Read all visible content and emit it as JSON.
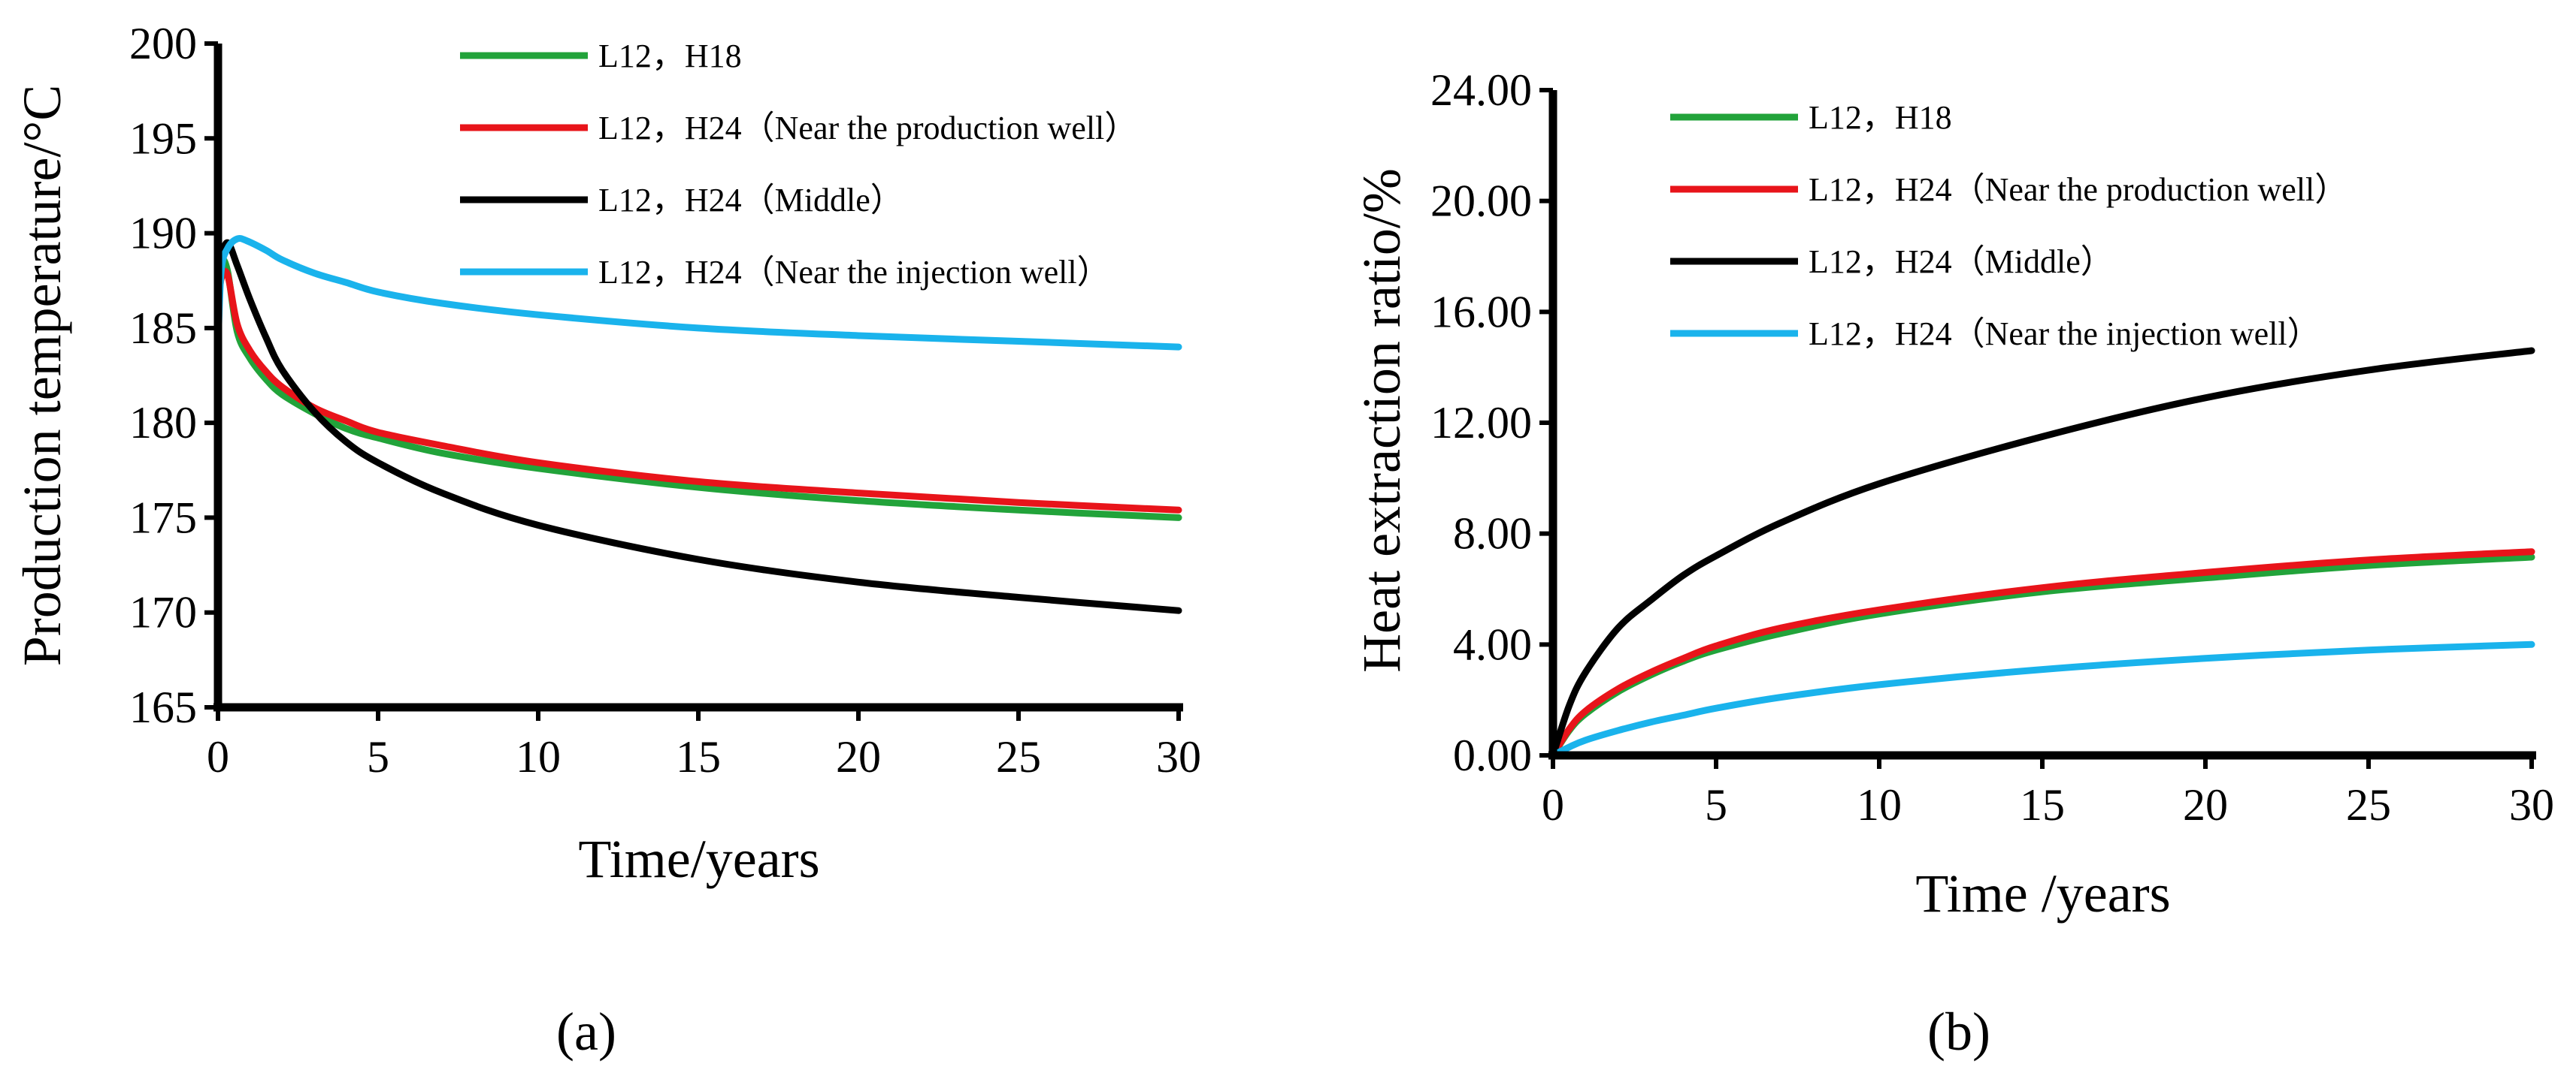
{
  "chart_data": [
    {
      "type": "line",
      "panel_label": "(a)",
      "xlabel": "Time/years",
      "ylabel": "Production temperature/°C",
      "xlim": [
        0,
        30
      ],
      "ylim": [
        165,
        200
      ],
      "x_ticks": [
        "0",
        "5",
        "10",
        "15",
        "20",
        "25",
        "30"
      ],
      "y_ticks": [
        "165",
        "170",
        "175",
        "180",
        "185",
        "190",
        "195",
        "200"
      ],
      "grid": false,
      "legend_position": "top-right",
      "series": [
        {
          "name": "L12，H18",
          "color": "#22a33a",
          "x": [
            0,
            0.1,
            0.3,
            0.6,
            1,
            1.5,
            2,
            3,
            4,
            5,
            7,
            10,
            15,
            20,
            25,
            30
          ],
          "y": [
            186.5,
            188.5,
            188.0,
            184.8,
            183.4,
            182.3,
            181.5,
            180.5,
            179.7,
            179.2,
            178.4,
            177.6,
            176.6,
            175.9,
            175.4,
            175.0
          ]
        },
        {
          "name": "L12，H24（Near the production well）",
          "color": "#e8141a",
          "x": [
            0,
            0.1,
            0.3,
            0.6,
            1,
            1.5,
            2,
            3,
            4,
            5,
            7,
            10,
            15,
            20,
            25,
            30
          ],
          "y": [
            186.0,
            187.6,
            187.8,
            185.2,
            183.8,
            182.7,
            181.9,
            180.8,
            180.1,
            179.5,
            178.8,
            177.9,
            176.9,
            176.3,
            175.8,
            175.4
          ]
        },
        {
          "name": "L12，H24（Middle）",
          "color": "#000000",
          "x": [
            0,
            0.1,
            0.3,
            0.6,
            1,
            1.5,
            2,
            3,
            4,
            5,
            7,
            10,
            15,
            20,
            25,
            30
          ],
          "y": [
            186.0,
            188.5,
            189.5,
            188.3,
            186.5,
            184.5,
            182.8,
            180.6,
            179.0,
            177.9,
            176.3,
            174.6,
            172.8,
            171.6,
            170.8,
            170.1
          ]
        },
        {
          "name": "L12，H24（Near the injection well）",
          "color": "#1ab3ec",
          "x": [
            0,
            0.1,
            0.3,
            0.6,
            0.9,
            1.5,
            2,
            3,
            4,
            5,
            7,
            10,
            15,
            20,
            25,
            30
          ],
          "y": [
            184.0,
            188.0,
            189.2,
            189.7,
            189.6,
            189.1,
            188.6,
            187.9,
            187.4,
            186.9,
            186.3,
            185.7,
            185.0,
            184.6,
            184.3,
            184.0
          ]
        }
      ]
    },
    {
      "type": "line",
      "panel_label": "(b)",
      "xlabel": "Time /years",
      "ylabel": "Heat extraction ratio/%",
      "xlim": [
        0,
        30
      ],
      "ylim": [
        0,
        24
      ],
      "x_ticks": [
        "0",
        "5",
        "10",
        "15",
        "20",
        "25",
        "30"
      ],
      "y_ticks": [
        "0.00",
        "4.00",
        "8.00",
        "12.00",
        "16.00",
        "20.00",
        "24.00"
      ],
      "grid": false,
      "legend_position": "top-right",
      "series": [
        {
          "name": "L12，H18",
          "color": "#22a33a",
          "x": [
            0,
            0.5,
            1,
            2,
            3,
            4,
            5,
            7,
            10,
            15,
            20,
            25,
            30
          ],
          "y": [
            0,
            0.9,
            1.5,
            2.3,
            2.9,
            3.4,
            3.8,
            4.4,
            5.1,
            5.9,
            6.4,
            6.85,
            7.15
          ]
        },
        {
          "name": "L12，H24（Near the production well）",
          "color": "#e8141a",
          "x": [
            0,
            0.5,
            1,
            2,
            3,
            4,
            5,
            7,
            10,
            15,
            20,
            25,
            30
          ],
          "y": [
            0,
            0.95,
            1.6,
            2.4,
            3.0,
            3.5,
            3.95,
            4.6,
            5.25,
            6.05,
            6.6,
            7.05,
            7.35
          ]
        },
        {
          "name": "L12，H24（Middle）",
          "color": "#000000",
          "x": [
            0,
            0.5,
            1,
            2,
            3,
            4,
            5,
            7,
            10,
            15,
            20,
            25,
            30
          ],
          "y": [
            0,
            1.8,
            3.0,
            4.6,
            5.6,
            6.5,
            7.2,
            8.4,
            9.8,
            11.5,
            12.9,
            13.9,
            14.6
          ]
        },
        {
          "name": "L12，H24（Near the injection well）",
          "color": "#1ab3ec",
          "x": [
            0,
            0.5,
            1,
            2,
            3,
            4,
            5,
            7,
            10,
            15,
            20,
            25,
            30
          ],
          "y": [
            0,
            0.3,
            0.55,
            0.9,
            1.2,
            1.45,
            1.7,
            2.1,
            2.55,
            3.1,
            3.5,
            3.8,
            4.0
          ]
        }
      ]
    }
  ]
}
